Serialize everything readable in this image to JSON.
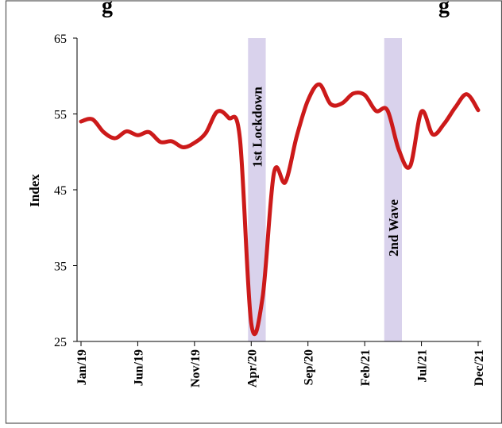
{
  "header": {
    "title_fragment_left": "g",
    "title_fragment_right": "g"
  },
  "chart_data": {
    "type": "line",
    "ylabel": "Index",
    "ylim": [
      25,
      65
    ],
    "yticks": [
      25,
      35,
      45,
      55,
      65
    ],
    "xlim": [
      0,
      35
    ],
    "xtick_labels": [
      {
        "label": "Jan/19",
        "index": 0
      },
      {
        "label": "Jun/19",
        "index": 5
      },
      {
        "label": "Nov/19",
        "index": 10
      },
      {
        "label": "Apr/20",
        "index": 15
      },
      {
        "label": "Sep/20",
        "index": 20
      },
      {
        "label": "Feb/21",
        "index": 25
      },
      {
        "label": "Jul/21",
        "index": 30
      },
      {
        "label": "Dec/21",
        "index": 35
      }
    ],
    "x": [
      "Jan/19",
      "Feb/19",
      "Mar/19",
      "Apr/19",
      "May/19",
      "Jun/19",
      "Jul/19",
      "Aug/19",
      "Sep/19",
      "Oct/19",
      "Nov/19",
      "Dec/19",
      "Jan/20",
      "Feb/20",
      "Mar/20",
      "Apr/20",
      "May/20",
      "Jun/20",
      "Jul/20",
      "Aug/20",
      "Sep/20",
      "Oct/20",
      "Nov/20",
      "Dec/20",
      "Jan/21",
      "Feb/21",
      "Mar/21",
      "Apr/21",
      "May/21",
      "Jun/21",
      "Jul/21",
      "Aug/21",
      "Sep/21",
      "Oct/21",
      "Nov/21",
      "Dec/21"
    ],
    "series": [
      {
        "values": [
          54.0,
          54.3,
          52.6,
          51.8,
          52.7,
          52.2,
          52.6,
          51.3,
          51.4,
          50.6,
          51.2,
          52.5,
          55.3,
          54.5,
          51.8,
          27.4,
          30.8,
          47.2,
          46.0,
          52.0,
          56.8,
          58.9,
          56.3,
          56.4,
          57.7,
          57.5,
          55.4,
          55.5,
          50.3,
          48.1,
          55.3,
          52.3,
          53.7,
          55.9,
          57.6,
          55.5
        ],
        "color": "#cc1a1a"
      }
    ],
    "shaded_regions": [
      {
        "label": "1st Lockdown",
        "x_start": "Apr/20",
        "x_end": "May/20",
        "color": "#d9d2ec"
      },
      {
        "label": "2nd Wave",
        "x_start": "Apr/21",
        "x_end": "May/21",
        "color": "#d9d2ec"
      }
    ],
    "grid": false,
    "legend": "none"
  }
}
